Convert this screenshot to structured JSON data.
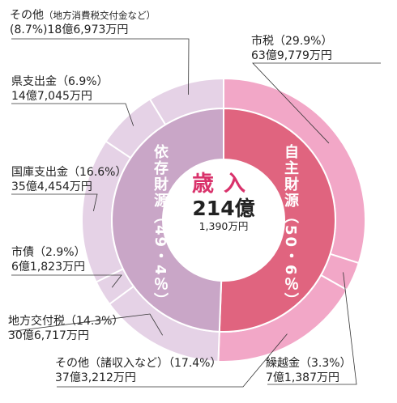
{
  "chart_data": {
    "type": "pie",
    "title": "歳入",
    "total_main": "214億",
    "total_sub": "1,390万円",
    "groups": [
      {
        "label": "自主財源（50・6％）",
        "value": 50.6,
        "color": "#e0647f"
      },
      {
        "label": "依存財源（49・4％）",
        "value": 49.4,
        "color": "#c9a6c7"
      }
    ],
    "slices": [
      {
        "name": "市税",
        "value": 29.9,
        "line1": "市税（29.9%）",
        "line2": "63億9,779万円",
        "group": "自主財源",
        "color": "#f2a7c7"
      },
      {
        "name": "繰越金",
        "value": 3.3,
        "line1": "繰越金（3.3%）",
        "line2": "7億1,387万円",
        "group": "自主財源",
        "color": "#f2a7c7"
      },
      {
        "name": "その他（諸収入など）",
        "value": 17.4,
        "line1": "その他（諸収入など）（17.4%）",
        "line2": "37億3,212万円",
        "group": "自主財源",
        "color": "#f2a7c7"
      },
      {
        "name": "地方交付税",
        "value": 14.3,
        "line1": "地方交付税（14.3%）",
        "line2": "30億6,717万円",
        "group": "依存財源",
        "color": "#e5d2e6"
      },
      {
        "name": "市債",
        "value": 2.9,
        "line1": "市債（2.9%）",
        "line2": "6億1,823万円",
        "group": "依存財源",
        "color": "#e5d2e6"
      },
      {
        "name": "国庫支出金",
        "value": 16.6,
        "line1": "国庫支出金（16.6%）",
        "line2": "35億4,454万円",
        "group": "依存財源",
        "color": "#e5d2e6"
      },
      {
        "name": "県支出金",
        "value": 6.9,
        "line1": "県支出金（6.9%）",
        "line2": "14億7,045万円",
        "group": "依存財源",
        "color": "#e5d2e6"
      },
      {
        "name": "その他",
        "value": 8.7,
        "line1a": "その他",
        "line1b": "（地方消費税交付金など）",
        "line1c": "(8.7%)",
        "line2": "18億6,973万円",
        "group": "依存財源",
        "color": "#e5d2e6"
      }
    ]
  }
}
